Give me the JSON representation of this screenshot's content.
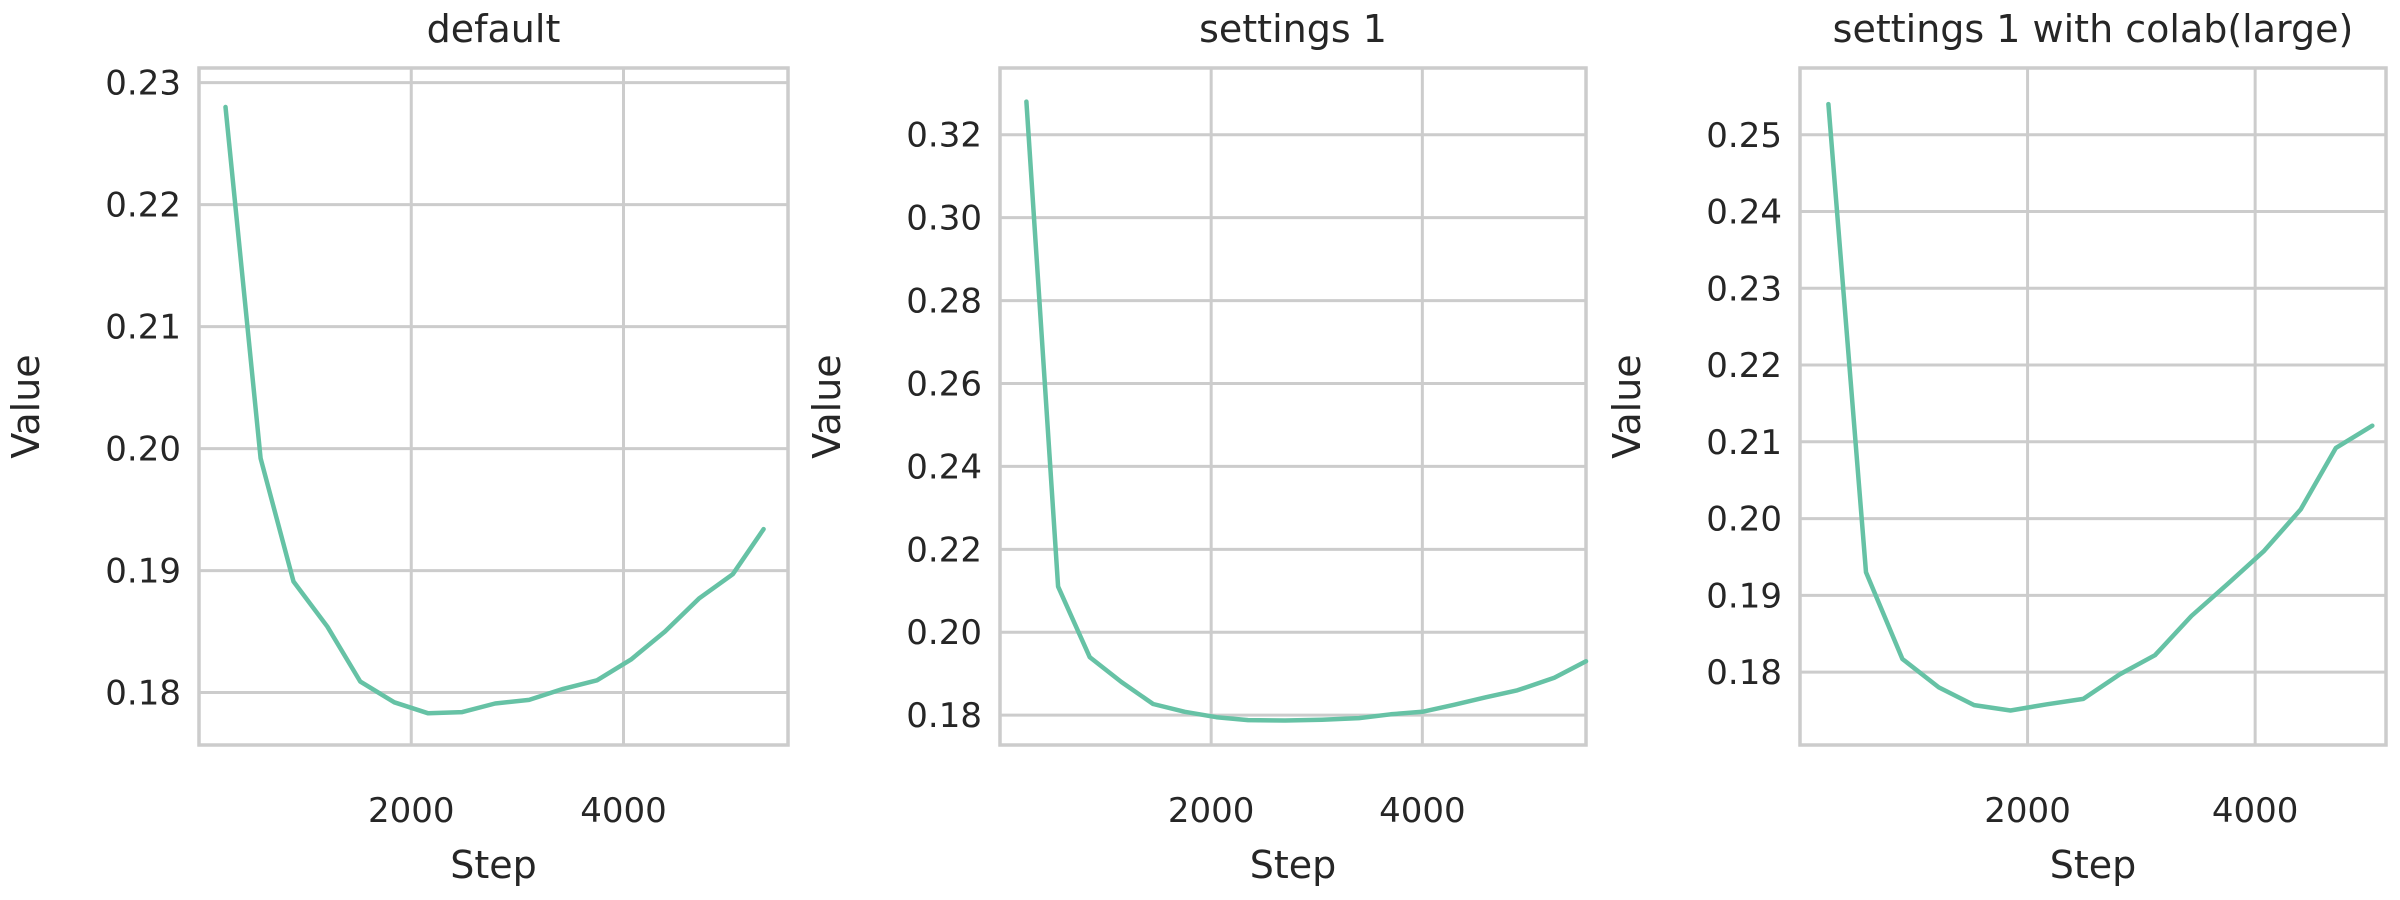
{
  "chart_data": [
    {
      "type": "line",
      "title": "default",
      "xlabel": "Step",
      "ylabel": "Value",
      "xlim": [
        0,
        5550
      ],
      "ylim": [
        0.1757,
        0.2312
      ],
      "xticks": [
        2000,
        4000
      ],
      "xtick_labels": [
        "2000",
        "4000"
      ],
      "yticks": [
        0.18,
        0.19,
        0.2,
        0.21,
        0.22,
        0.23
      ],
      "ytick_labels": [
        "0.18",
        "0.19",
        "0.20",
        "0.21",
        "0.22",
        "0.23"
      ],
      "grid": true,
      "color": "#66c2a5",
      "x": [
        250,
        580,
        890,
        1210,
        1520,
        1840,
        2160,
        2480,
        2790,
        3110,
        3430,
        3750,
        4070,
        4390,
        4710,
        5030,
        5320
      ],
      "y": [
        0.228,
        0.1992,
        0.1891,
        0.1854,
        0.1809,
        0.1792,
        0.1783,
        0.1784,
        0.1791,
        0.1794,
        0.1803,
        0.181,
        0.1827,
        0.185,
        0.1877,
        0.1897,
        0.1934
      ]
    },
    {
      "type": "line",
      "title": "settings 1",
      "xlabel": "Step",
      "ylabel": "Value",
      "xlim": [
        0,
        5550
      ],
      "ylim": [
        0.1728,
        0.3361
      ],
      "xticks": [
        2000,
        4000
      ],
      "xtick_labels": [
        "2000",
        "4000"
      ],
      "yticks": [
        0.18,
        0.2,
        0.22,
        0.24,
        0.26,
        0.28,
        0.3,
        0.32
      ],
      "ytick_labels": [
        "0.18",
        "0.20",
        "0.22",
        "0.24",
        "0.26",
        "0.28",
        "0.30",
        "0.32"
      ],
      "grid": true,
      "color": "#66c2a5",
      "x": [
        250,
        550,
        850,
        1150,
        1450,
        1750,
        2050,
        2350,
        2700,
        3050,
        3400,
        3700,
        4000,
        4300,
        4600,
        4900,
        5250,
        5550
      ],
      "y": [
        0.328,
        0.211,
        0.194,
        0.188,
        0.1827,
        0.1808,
        0.1795,
        0.1788,
        0.1787,
        0.1789,
        0.1793,
        0.1802,
        0.1808,
        0.1825,
        0.1843,
        0.186,
        0.189,
        0.193
      ]
    },
    {
      "type": "line",
      "title": "settings 1 with colab(large)",
      "xlabel": "Step",
      "ylabel": "Value",
      "xlim": [
        0,
        5150
      ],
      "ylim": [
        0.1705,
        0.2587
      ],
      "xticks": [
        2000,
        4000
      ],
      "xtick_labels": [
        "2000",
        "4000"
      ],
      "yticks": [
        0.18,
        0.19,
        0.2,
        0.21,
        0.22,
        0.23,
        0.24,
        0.25
      ],
      "ytick_labels": [
        "0.18",
        "0.19",
        "0.20",
        "0.21",
        "0.22",
        "0.23",
        "0.24",
        "0.25"
      ],
      "grid": true,
      "color": "#66c2a5",
      "x": [
        250,
        580,
        900,
        1220,
        1530,
        1850,
        2170,
        2490,
        2810,
        3120,
        3440,
        3760,
        4080,
        4400,
        4710,
        5030
      ],
      "y": [
        0.254,
        0.193,
        0.1817,
        0.178,
        0.1757,
        0.175,
        0.1758,
        0.1765,
        0.1797,
        0.1822,
        0.1873,
        0.1915,
        0.1958,
        0.2012,
        0.2092,
        0.2121
      ]
    }
  ]
}
